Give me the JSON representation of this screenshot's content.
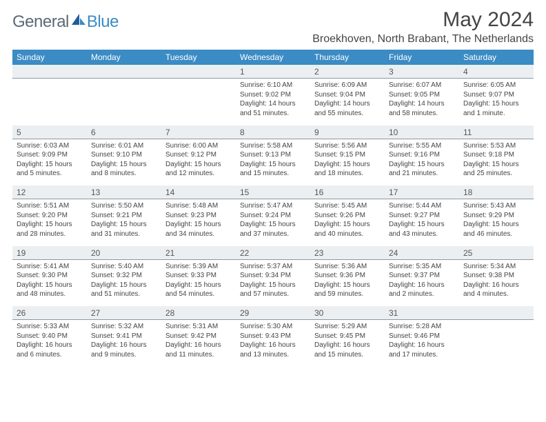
{
  "colors": {
    "header_bg": "#3b8bc4",
    "header_fg": "#ffffff",
    "daynum_bg": "#eceff1",
    "daynum_border": "#8a98a4",
    "body_text": "#444444",
    "logo_general": "#5a6a75",
    "logo_blue": "#3b8bc4",
    "background": "#ffffff"
  },
  "typography": {
    "title_fontsize": 30,
    "subtitle_fontsize": 16,
    "dayhead_fontsize": 12,
    "daynum_fontsize": 12,
    "body_fontsize": 10,
    "font_family": "Arial"
  },
  "logo": {
    "text1": "General",
    "text2": "Blue"
  },
  "title": "May 2024",
  "location": "Broekhoven, North Brabant, The Netherlands",
  "weekdays": [
    "Sunday",
    "Monday",
    "Tuesday",
    "Wednesday",
    "Thursday",
    "Friday",
    "Saturday"
  ],
  "labels": {
    "sunrise": "Sunrise:",
    "sunset": "Sunset:",
    "daylight": "Daylight:"
  },
  "weeks": [
    [
      null,
      null,
      null,
      {
        "n": "1",
        "sr": "6:10 AM",
        "ss": "9:02 PM",
        "dl": "14 hours and 51 minutes."
      },
      {
        "n": "2",
        "sr": "6:09 AM",
        "ss": "9:04 PM",
        "dl": "14 hours and 55 minutes."
      },
      {
        "n": "3",
        "sr": "6:07 AM",
        "ss": "9:05 PM",
        "dl": "14 hours and 58 minutes."
      },
      {
        "n": "4",
        "sr": "6:05 AM",
        "ss": "9:07 PM",
        "dl": "15 hours and 1 minute."
      }
    ],
    [
      {
        "n": "5",
        "sr": "6:03 AM",
        "ss": "9:09 PM",
        "dl": "15 hours and 5 minutes."
      },
      {
        "n": "6",
        "sr": "6:01 AM",
        "ss": "9:10 PM",
        "dl": "15 hours and 8 minutes."
      },
      {
        "n": "7",
        "sr": "6:00 AM",
        "ss": "9:12 PM",
        "dl": "15 hours and 12 minutes."
      },
      {
        "n": "8",
        "sr": "5:58 AM",
        "ss": "9:13 PM",
        "dl": "15 hours and 15 minutes."
      },
      {
        "n": "9",
        "sr": "5:56 AM",
        "ss": "9:15 PM",
        "dl": "15 hours and 18 minutes."
      },
      {
        "n": "10",
        "sr": "5:55 AM",
        "ss": "9:16 PM",
        "dl": "15 hours and 21 minutes."
      },
      {
        "n": "11",
        "sr": "5:53 AM",
        "ss": "9:18 PM",
        "dl": "15 hours and 25 minutes."
      }
    ],
    [
      {
        "n": "12",
        "sr": "5:51 AM",
        "ss": "9:20 PM",
        "dl": "15 hours and 28 minutes."
      },
      {
        "n": "13",
        "sr": "5:50 AM",
        "ss": "9:21 PM",
        "dl": "15 hours and 31 minutes."
      },
      {
        "n": "14",
        "sr": "5:48 AM",
        "ss": "9:23 PM",
        "dl": "15 hours and 34 minutes."
      },
      {
        "n": "15",
        "sr": "5:47 AM",
        "ss": "9:24 PM",
        "dl": "15 hours and 37 minutes."
      },
      {
        "n": "16",
        "sr": "5:45 AM",
        "ss": "9:26 PM",
        "dl": "15 hours and 40 minutes."
      },
      {
        "n": "17",
        "sr": "5:44 AM",
        "ss": "9:27 PM",
        "dl": "15 hours and 43 minutes."
      },
      {
        "n": "18",
        "sr": "5:43 AM",
        "ss": "9:29 PM",
        "dl": "15 hours and 46 minutes."
      }
    ],
    [
      {
        "n": "19",
        "sr": "5:41 AM",
        "ss": "9:30 PM",
        "dl": "15 hours and 48 minutes."
      },
      {
        "n": "20",
        "sr": "5:40 AM",
        "ss": "9:32 PM",
        "dl": "15 hours and 51 minutes."
      },
      {
        "n": "21",
        "sr": "5:39 AM",
        "ss": "9:33 PM",
        "dl": "15 hours and 54 minutes."
      },
      {
        "n": "22",
        "sr": "5:37 AM",
        "ss": "9:34 PM",
        "dl": "15 hours and 57 minutes."
      },
      {
        "n": "23",
        "sr": "5:36 AM",
        "ss": "9:36 PM",
        "dl": "15 hours and 59 minutes."
      },
      {
        "n": "24",
        "sr": "5:35 AM",
        "ss": "9:37 PM",
        "dl": "16 hours and 2 minutes."
      },
      {
        "n": "25",
        "sr": "5:34 AM",
        "ss": "9:38 PM",
        "dl": "16 hours and 4 minutes."
      }
    ],
    [
      {
        "n": "26",
        "sr": "5:33 AM",
        "ss": "9:40 PM",
        "dl": "16 hours and 6 minutes."
      },
      {
        "n": "27",
        "sr": "5:32 AM",
        "ss": "9:41 PM",
        "dl": "16 hours and 9 minutes."
      },
      {
        "n": "28",
        "sr": "5:31 AM",
        "ss": "9:42 PM",
        "dl": "16 hours and 11 minutes."
      },
      {
        "n": "29",
        "sr": "5:30 AM",
        "ss": "9:43 PM",
        "dl": "16 hours and 13 minutes."
      },
      {
        "n": "30",
        "sr": "5:29 AM",
        "ss": "9:45 PM",
        "dl": "16 hours and 15 minutes."
      },
      {
        "n": "31",
        "sr": "5:28 AM",
        "ss": "9:46 PM",
        "dl": "16 hours and 17 minutes."
      },
      null
    ]
  ]
}
